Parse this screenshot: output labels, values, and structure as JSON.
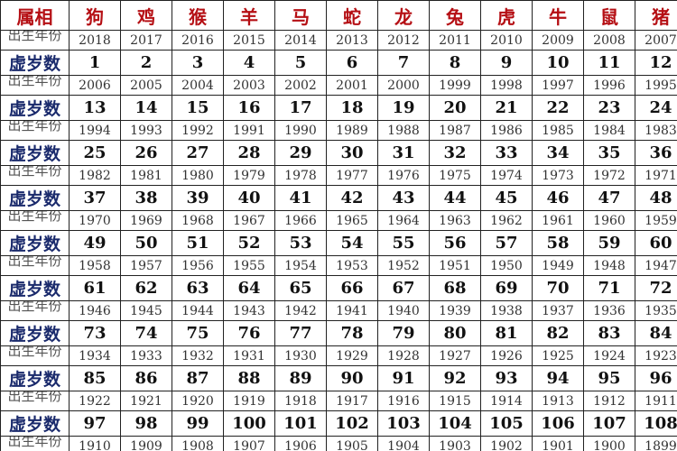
{
  "table": {
    "header": [
      "属相",
      "狗",
      "鸡",
      "猴",
      "羊",
      "马",
      "蛇",
      "龙",
      "兔",
      "虎",
      "牛",
      "鼠",
      "猪"
    ],
    "rows": [
      {
        "label": "出生年份",
        "values": [
          2018,
          2017,
          2016,
          2015,
          2014,
          2013,
          2012,
          2011,
          2010,
          2009,
          2008,
          2007
        ]
      },
      {
        "label": "虚岁数",
        "values": [
          1,
          2,
          3,
          4,
          5,
          6,
          7,
          8,
          9,
          10,
          11,
          12
        ]
      },
      {
        "label": "出生年份",
        "values": [
          2006,
          2005,
          2004,
          2003,
          2002,
          2001,
          2000,
          1999,
          1998,
          1997,
          1996,
          1995
        ]
      },
      {
        "label": "虚岁数",
        "values": [
          13,
          14,
          15,
          16,
          17,
          18,
          19,
          20,
          21,
          22,
          23,
          24
        ]
      },
      {
        "label": "出生年份",
        "values": [
          1994,
          1993,
          1992,
          1991,
          1990,
          1989,
          1988,
          1987,
          1986,
          1985,
          1984,
          1983
        ]
      },
      {
        "label": "虚岁数",
        "values": [
          25,
          26,
          27,
          28,
          29,
          30,
          31,
          32,
          33,
          34,
          35,
          36
        ]
      },
      {
        "label": "出生年份",
        "values": [
          1982,
          1981,
          1980,
          1979,
          1978,
          1977,
          1976,
          1975,
          1974,
          1973,
          1972,
          1971
        ]
      },
      {
        "label": "虚岁数",
        "values": [
          37,
          38,
          39,
          40,
          41,
          42,
          43,
          44,
          45,
          46,
          47,
          48
        ]
      },
      {
        "label": "出生年份",
        "values": [
          1970,
          1969,
          1968,
          1967,
          1966,
          1965,
          1964,
          1963,
          1962,
          1961,
          1960,
          1959
        ]
      },
      {
        "label": "虚岁数",
        "values": [
          49,
          50,
          51,
          52,
          53,
          54,
          55,
          56,
          57,
          58,
          59,
          60
        ]
      },
      {
        "label": "出生年份",
        "values": [
          1958,
          1957,
          1956,
          1955,
          1954,
          1953,
          1952,
          1951,
          1950,
          1949,
          1948,
          1947
        ]
      },
      {
        "label": "虚岁数",
        "values": [
          61,
          62,
          63,
          64,
          65,
          66,
          67,
          68,
          69,
          70,
          71,
          72
        ]
      },
      {
        "label": "出生年份",
        "values": [
          1946,
          1945,
          1944,
          1943,
          1942,
          1941,
          1940,
          1939,
          1938,
          1937,
          1936,
          1935
        ]
      },
      {
        "label": "虚岁数",
        "values": [
          73,
          74,
          75,
          76,
          77,
          78,
          79,
          80,
          81,
          82,
          83,
          84
        ]
      },
      {
        "label": "出生年份",
        "values": [
          1934,
          1933,
          1932,
          1931,
          1930,
          1929,
          1928,
          1927,
          1926,
          1925,
          1924,
          1923
        ]
      },
      {
        "label": "虚岁数",
        "values": [
          85,
          86,
          87,
          88,
          89,
          90,
          91,
          92,
          93,
          94,
          95,
          96
        ]
      },
      {
        "label": "出生年份",
        "values": [
          1922,
          1921,
          1920,
          1919,
          1918,
          1917,
          1916,
          1915,
          1914,
          1913,
          1912,
          1911
        ]
      },
      {
        "label": "虚岁数",
        "values": [
          97,
          98,
          99,
          100,
          101,
          102,
          103,
          104,
          105,
          106,
          107,
          108
        ]
      },
      {
        "label": "出生年份",
        "values": [
          1910,
          1909,
          1908,
          1907,
          1906,
          1905,
          1904,
          1903,
          1902,
          1901,
          1900,
          1899
        ]
      }
    ]
  }
}
